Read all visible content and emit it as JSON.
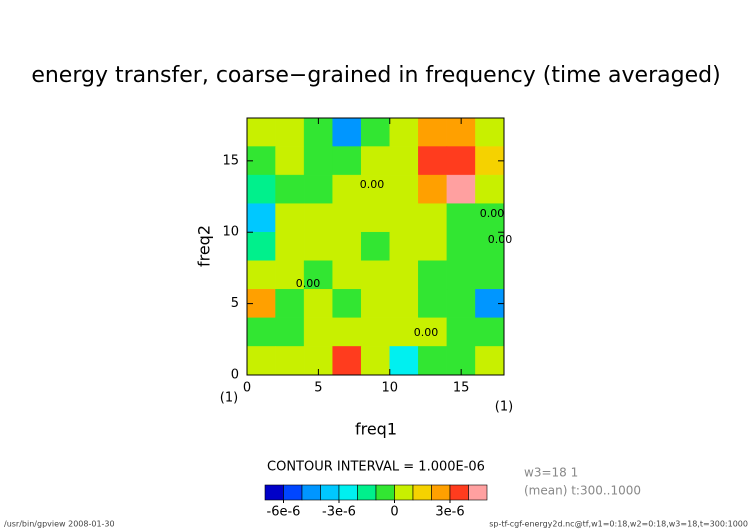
{
  "chart_data": {
    "type": "contour",
    "title": "energy transfer, coarse−grained in frequency (time averaged)",
    "x_label": "freq1",
    "y_label": "freq2",
    "x_unit": "(1)",
    "y_unit": "(1)",
    "xlim": [
      0,
      18
    ],
    "ylim": [
      0,
      18
    ],
    "xticks": [
      0,
      5,
      10,
      15
    ],
    "yticks": [
      0,
      5,
      10,
      15
    ],
    "x": [
      0,
      2,
      4,
      6,
      8,
      10,
      12,
      14,
      16,
      18
    ],
    "y": [
      18,
      16,
      14,
      12,
      10,
      8,
      6,
      4,
      2,
      0
    ],
    "z": [
      [
        5e-07,
        5e-07,
        -5e-07,
        -5e-06,
        -5e-07,
        5e-07,
        2.5e-06,
        2.5e-06,
        5e-07
      ],
      [
        -5e-07,
        5e-07,
        -5e-07,
        -5e-07,
        5e-07,
        5e-07,
        3.5e-06,
        3.5e-06,
        1.5e-06
      ],
      [
        -1.5e-06,
        -5e-07,
        -5e-07,
        5e-07,
        5e-07,
        5e-07,
        2.5e-06,
        4.5e-06,
        5e-07
      ],
      [
        -3.5e-06,
        5e-07,
        5e-07,
        5e-07,
        5e-07,
        5e-07,
        5e-07,
        -5e-07,
        -5e-07
      ],
      [
        -1.5e-06,
        5e-07,
        5e-07,
        5e-07,
        -5e-07,
        5e-07,
        5e-07,
        -5e-07,
        -5e-07
      ],
      [
        5e-07,
        5e-07,
        -5e-07,
        5e-07,
        5e-07,
        5e-07,
        -5e-07,
        -5e-07,
        -5e-07
      ],
      [
        2.5e-06,
        -5e-07,
        5e-07,
        -5e-07,
        5e-07,
        5e-07,
        -5e-07,
        -5e-07,
        -4.5e-06
      ],
      [
        -5e-07,
        -5e-07,
        5e-07,
        5e-07,
        5e-07,
        5e-07,
        5e-07,
        -5e-07,
        -5e-07
      ],
      [
        5e-07,
        5e-07,
        5e-07,
        3.5e-06,
        5e-07,
        -2.5e-06,
        -5e-07,
        -5e-07,
        5e-07
      ]
    ],
    "levels": [
      -7e-06,
      -6e-06,
      -5e-06,
      -4e-06,
      -3e-06,
      -2e-06,
      -1e-06,
      0,
      1e-06,
      2e-06,
      3e-06,
      4e-06,
      5e-06
    ],
    "colors": [
      "#0000c8",
      "#0046ff",
      "#0096ff",
      "#00c8ff",
      "#00f0f0",
      "#00f08c",
      "#32e632",
      "#c8f000",
      "#f5d200",
      "#ffa000",
      "#ff3c1e",
      "#ffa0a0"
    ],
    "colorbar_ticks": [
      {
        "value": -6e-06,
        "label": "-6e-6"
      },
      {
        "value": -3e-06,
        "label": "-3e-6"
      },
      0,
      {
        "value": 3e-06,
        "label": "3e-6"
      }
    ],
    "contour_labels": [
      "0.00",
      "0.00",
      "0.00",
      "0.00",
      "0.00"
    ],
    "contour_interval": "CONTOUR INTERVAL = 1.000E-06",
    "info_lines": [
      "w3=18 1",
      "(mean) t:300..1000"
    ],
    "footer_left": "/usr/bin/gpview  2008-01-30",
    "footer_right": "sp-tf-cgf-energy2d.nc@tf,w1=0:18,w2=0:18,w3=18,t=300:1000"
  }
}
